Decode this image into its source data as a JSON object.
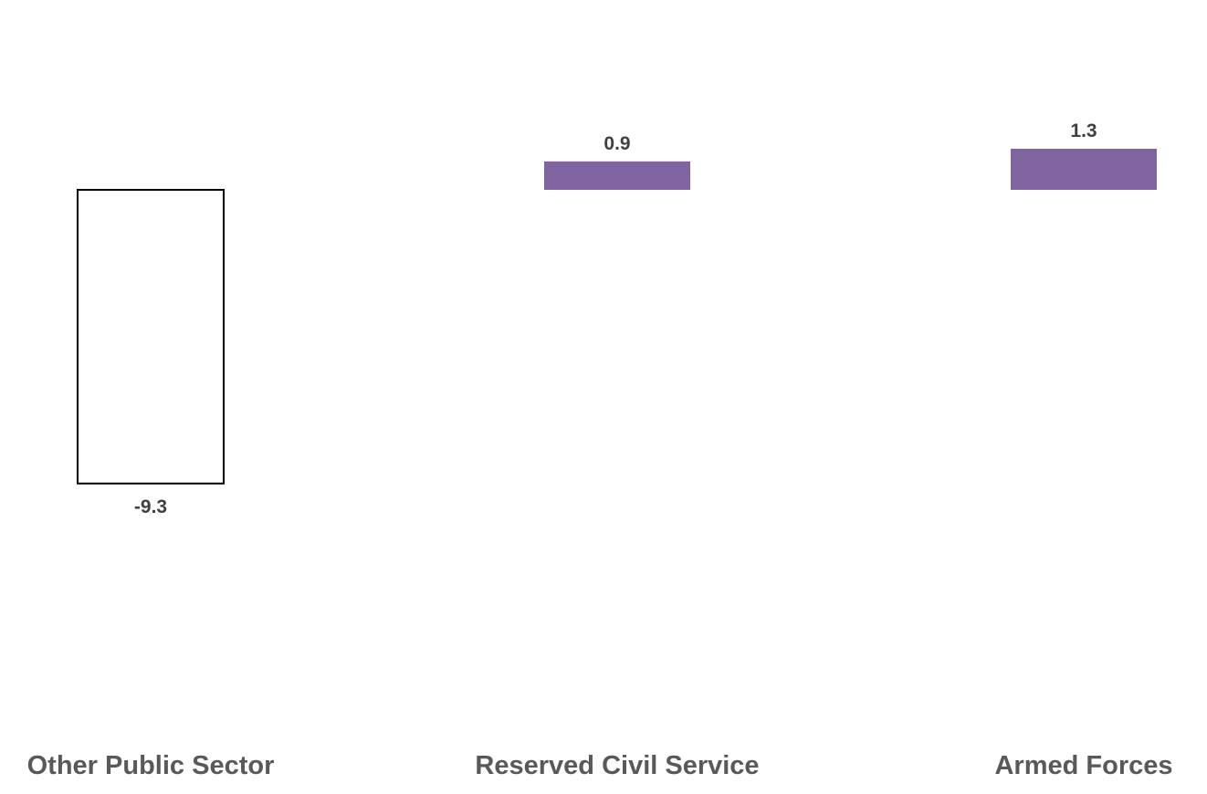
{
  "chart_data": {
    "type": "bar",
    "categories": [
      "Other Public Sector",
      "Reserved Civil Service",
      "Armed Forces"
    ],
    "values": [
      -9.3,
      0.9,
      1.3
    ],
    "data_labels": [
      "-9.3",
      "0.9",
      "1.3"
    ],
    "colors": {
      "positive_fill": "#8064a2",
      "negative_fill": "#ffffff",
      "negative_stroke": "#000000",
      "category_label": "#595959",
      "value_label": "#404040"
    },
    "grid": false,
    "legend": "none",
    "ylim": [
      -17.9,
      5.7
    ]
  }
}
